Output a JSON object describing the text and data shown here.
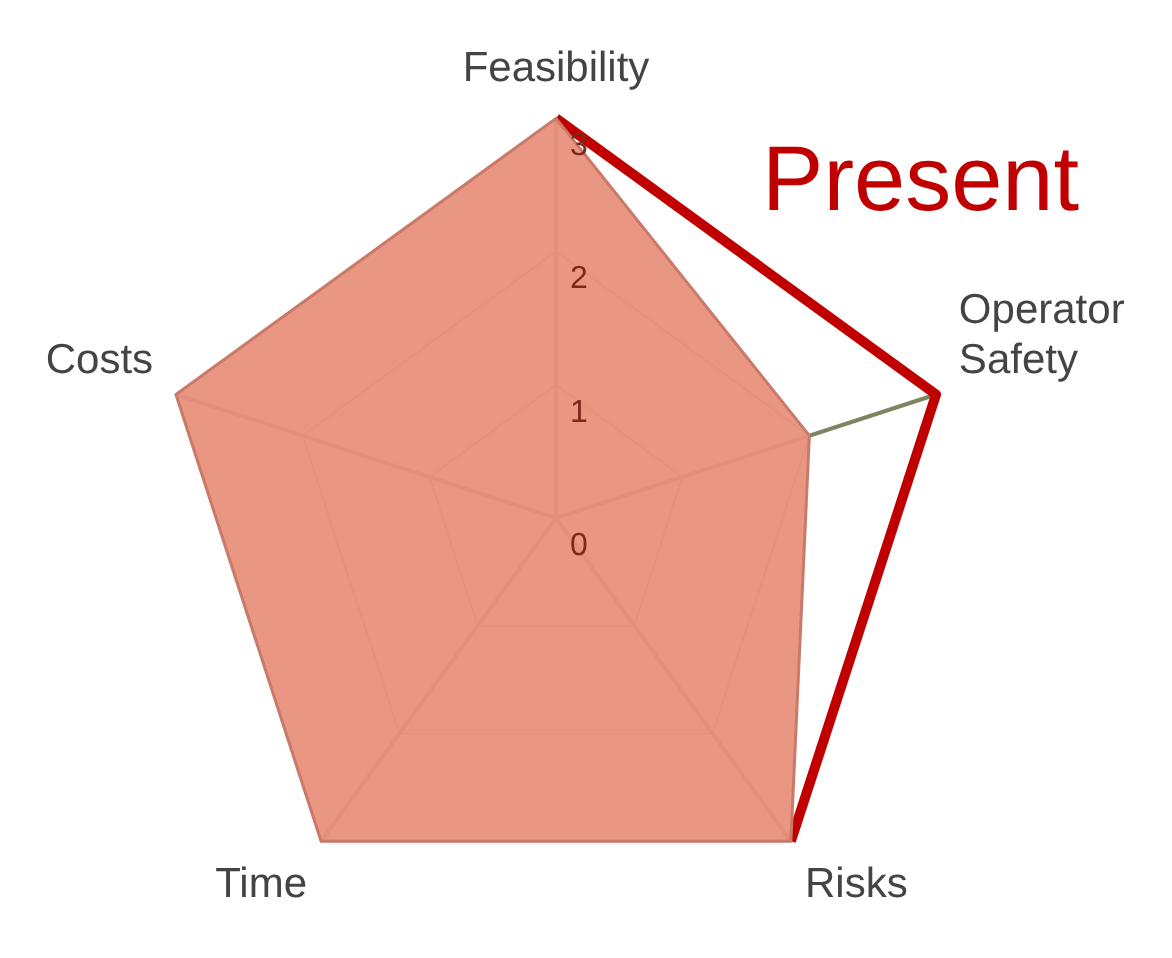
{
  "chart_data": {
    "type": "radar",
    "categories": [
      "Feasibility",
      "Operator Safety",
      "Risks",
      "Time",
      "Costs"
    ],
    "series": [
      {
        "type": "area",
        "color": "#e8907c",
        "values": [
          3,
          2,
          3,
          3,
          3
        ]
      },
      {
        "name": "Present",
        "color": "#c00000",
        "values": [
          3,
          3,
          3,
          null,
          null
        ]
      }
    ],
    "ylim": [
      0,
      3
    ],
    "yticks": [
      0,
      1,
      2,
      3
    ],
    "grid": true,
    "marker": "none"
  }
}
